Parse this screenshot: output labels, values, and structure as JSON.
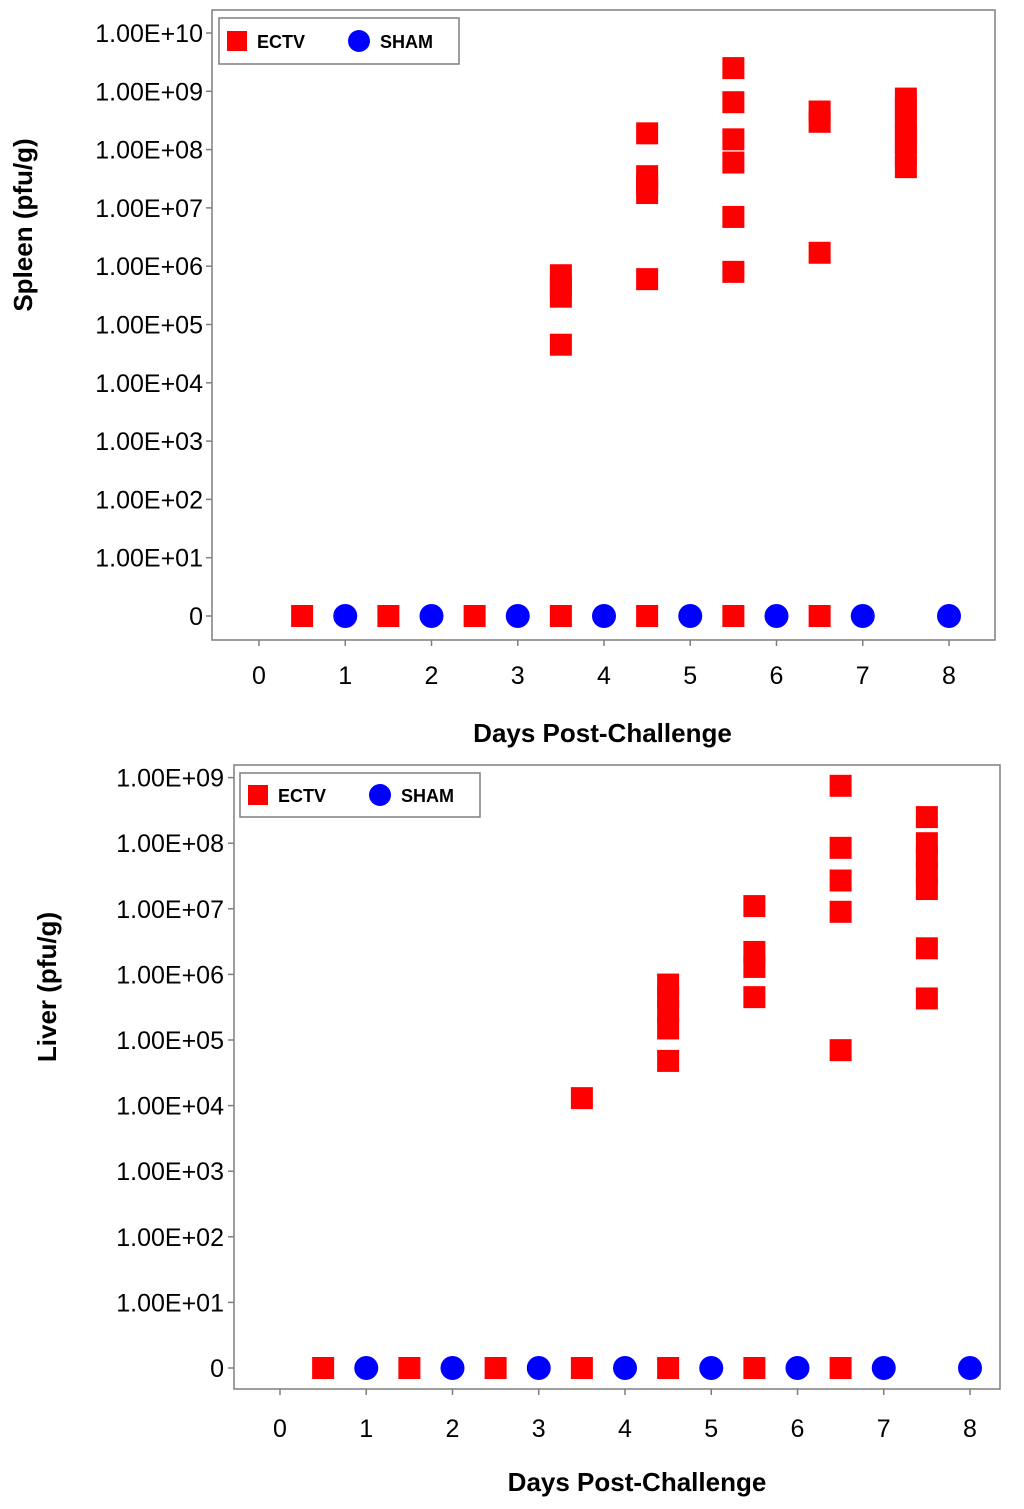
{
  "chart_data": [
    {
      "type": "scatter",
      "ylabel": "Spleen (pfu/g)",
      "xlabel": "Days Post-Challenge",
      "xlim": [
        -0.4,
        8.5
      ],
      "x_ticks": [
        "0",
        "1",
        "2",
        "3",
        "4",
        "5",
        "6",
        "7",
        "8"
      ],
      "y_scale": "log",
      "y_ticks": [
        "0",
        "1.00E+01",
        "1.00E+02",
        "1.00E+03",
        "1.00E+04",
        "1.00E+05",
        "1.00E+06",
        "1.00E+07",
        "1.00E+08",
        "1.00E+09",
        "1.00E+10"
      ],
      "ylim": [
        "0",
        "1.00E+10"
      ],
      "legend_position": "top-left",
      "colors": {
        "ECTV": "#ff0000",
        "SHAM": "#0000ff"
      },
      "series": [
        {
          "name": "ECTV",
          "marker": "square",
          "points": [
            {
              "x": 0.5,
              "y": 0
            },
            {
              "x": 1.5,
              "y": 0
            },
            {
              "x": 2.5,
              "y": 0
            },
            {
              "x": 3.5,
              "y": 0
            },
            {
              "x": 4.5,
              "y": 0
            },
            {
              "x": 5.5,
              "y": 0
            },
            {
              "x": 6.5,
              "y": 0
            },
            {
              "x": 3.5,
              "y": 45000
            },
            {
              "x": 3.5,
              "y": 300000
            },
            {
              "x": 3.5,
              "y": 450000
            },
            {
              "x": 3.5,
              "y": 700000
            },
            {
              "x": 4.5,
              "y": 600000
            },
            {
              "x": 4.5,
              "y": 18000000
            },
            {
              "x": 4.5,
              "y": 25000000
            },
            {
              "x": 4.5,
              "y": 35000000
            },
            {
              "x": 4.5,
              "y": 190000000
            },
            {
              "x": 5.5,
              "y": 800000
            },
            {
              "x": 5.5,
              "y": 7000000
            },
            {
              "x": 5.5,
              "y": 60000000
            },
            {
              "x": 5.5,
              "y": 150000000
            },
            {
              "x": 5.5,
              "y": 650000000
            },
            {
              "x": 5.5,
              "y": 2500000000
            },
            {
              "x": 6.5,
              "y": 1700000
            },
            {
              "x": 6.5,
              "y": 300000000
            },
            {
              "x": 6.5,
              "y": 450000000
            },
            {
              "x": 7.5,
              "y": 50000000
            },
            {
              "x": 7.5,
              "y": 80000000
            },
            {
              "x": 7.5,
              "y": 130000000
            },
            {
              "x": 7.5,
              "y": 200000000
            },
            {
              "x": 7.5,
              "y": 320000000
            },
            {
              "x": 7.5,
              "y": 500000000
            },
            {
              "x": 7.5,
              "y": 750000000
            }
          ]
        },
        {
          "name": "SHAM",
          "marker": "circle",
          "points": [
            {
              "x": 1,
              "y": 0
            },
            {
              "x": 2,
              "y": 0
            },
            {
              "x": 3,
              "y": 0
            },
            {
              "x": 4,
              "y": 0
            },
            {
              "x": 5,
              "y": 0
            },
            {
              "x": 6,
              "y": 0
            },
            {
              "x": 7,
              "y": 0
            },
            {
              "x": 8,
              "y": 0
            }
          ]
        }
      ]
    },
    {
      "type": "scatter",
      "ylabel": "Liver (pfu/g)",
      "xlabel": "Days Post-Challenge",
      "xlim": [
        -0.4,
        8.5
      ],
      "x_ticks": [
        "0",
        "1",
        "2",
        "3",
        "4",
        "5",
        "6",
        "7",
        "8"
      ],
      "y_scale": "log",
      "y_ticks": [
        "0",
        "1.00E+01",
        "1.00E+02",
        "1.00E+03",
        "1.00E+04",
        "1.00E+05",
        "1.00E+06",
        "1.00E+07",
        "1.00E+08",
        "1.00E+09"
      ],
      "ylim": [
        "0",
        "1.00E+09"
      ],
      "legend_position": "top-left",
      "colors": {
        "ECTV": "#ff0000",
        "SHAM": "#0000ff"
      },
      "series": [
        {
          "name": "ECTV",
          "marker": "square",
          "points": [
            {
              "x": 0.5,
              "y": 0
            },
            {
              "x": 1.5,
              "y": 0
            },
            {
              "x": 2.5,
              "y": 0
            },
            {
              "x": 3.5,
              "y": 0
            },
            {
              "x": 4.5,
              "y": 0
            },
            {
              "x": 5.5,
              "y": 0
            },
            {
              "x": 6.5,
              "y": 0
            },
            {
              "x": 3.5,
              "y": 13000
            },
            {
              "x": 4.5,
              "y": 48000
            },
            {
              "x": 4.5,
              "y": 150000
            },
            {
              "x": 4.5,
              "y": 280000
            },
            {
              "x": 4.5,
              "y": 450000
            },
            {
              "x": 4.5,
              "y": 700000
            },
            {
              "x": 5.5,
              "y": 450000
            },
            {
              "x": 5.5,
              "y": 1300000
            },
            {
              "x": 5.5,
              "y": 2200000
            },
            {
              "x": 5.5,
              "y": 11000000
            },
            {
              "x": 6.5,
              "y": 70000
            },
            {
              "x": 6.5,
              "y": 9000000
            },
            {
              "x": 6.5,
              "y": 27000000
            },
            {
              "x": 6.5,
              "y": 85000000
            },
            {
              "x": 6.5,
              "y": 750000000
            },
            {
              "x": 7.5,
              "y": 430000
            },
            {
              "x": 7.5,
              "y": 2500000
            },
            {
              "x": 7.5,
              "y": 20000000
            },
            {
              "x": 7.5,
              "y": 35000000
            },
            {
              "x": 7.5,
              "y": 60000000
            },
            {
              "x": 7.5,
              "y": 100000000
            },
            {
              "x": 7.5,
              "y": 250000000
            }
          ]
        },
        {
          "name": "SHAM",
          "marker": "circle",
          "points": [
            {
              "x": 1,
              "y": 0
            },
            {
              "x": 2,
              "y": 0
            },
            {
              "x": 3,
              "y": 0
            },
            {
              "x": 4,
              "y": 0
            },
            {
              "x": 5,
              "y": 0
            },
            {
              "x": 6,
              "y": 0
            },
            {
              "x": 7,
              "y": 0
            },
            {
              "x": 8,
              "y": 0
            }
          ]
        }
      ]
    }
  ]
}
